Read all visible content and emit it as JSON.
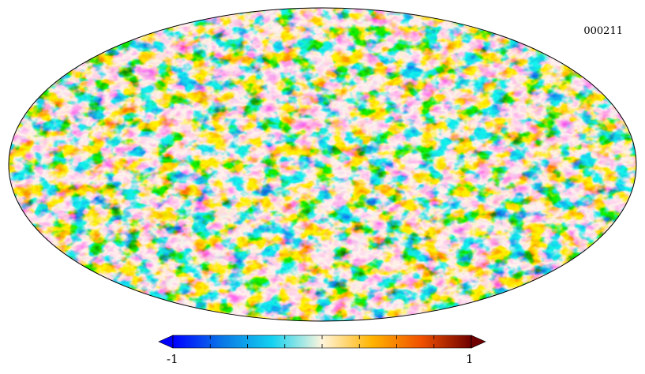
{
  "map": {
    "id_label": "000211",
    "projection": "mollweide",
    "colormap": [
      "#0000ff",
      "#0a78e6",
      "#14d2f0",
      "#fff5dc",
      "#ffb400",
      "#f05000",
      "#6e0000"
    ]
  },
  "colorbar": {
    "min_label": "-1",
    "max_label": "1",
    "min": -1,
    "max": 1,
    "tick_count": 9
  }
}
